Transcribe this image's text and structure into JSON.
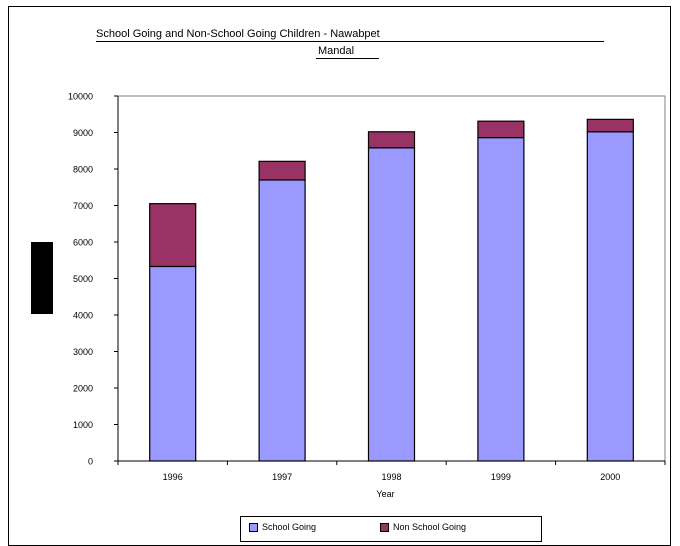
{
  "chart_data": {
    "type": "bar",
    "stacked": true,
    "title": "School Going and Non-School Going Children - Nawabpet Mandal",
    "title_lines": [
      "School Going and Non-School Going Children - Nawabpet",
      "Mandal"
    ],
    "xlabel": "Year",
    "ylabel": "",
    "categories": [
      "1996",
      "1997",
      "1998",
      "1999",
      "2000"
    ],
    "series": [
      {
        "name": "School Going",
        "color": "#9999ff",
        "values": [
          5330,
          7700,
          8580,
          8860,
          9020
        ]
      },
      {
        "name": "Non School Going",
        "color": "#993366",
        "values": [
          1720,
          510,
          440,
          450,
          340
        ]
      }
    ],
    "ylim": [
      0,
      10000
    ],
    "yticks": [
      0,
      1000,
      2000,
      3000,
      4000,
      5000,
      6000,
      7000,
      8000,
      9000,
      10000
    ],
    "grid": false,
    "legend": "bottom"
  }
}
